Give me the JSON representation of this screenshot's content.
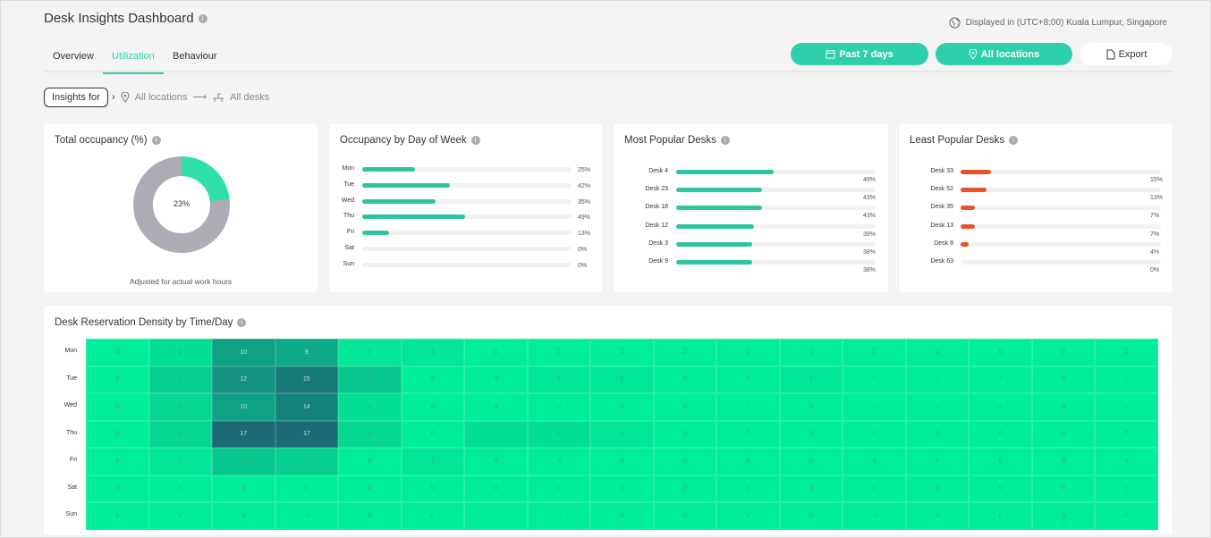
{
  "header": {
    "title": "Desk Insights Dashboard",
    "info": "i",
    "timezone": "Displayed in (UTC+8:00) Kuala Lumpur, Singapore"
  },
  "tabs": [
    {
      "label": "Overview"
    },
    {
      "label": "Utilization",
      "active": true
    },
    {
      "label": "Behaviour"
    }
  ],
  "buttons": {
    "date": "Past 7 days",
    "location": "All locations",
    "export": "Export"
  },
  "breadcrumb": {
    "insights_for": "Insights for",
    "location": "All locations",
    "desks": "All desks"
  },
  "colors": {
    "accent": "#2ecfab",
    "bar_green": "#2ec4a0",
    "bar_red": "#e8522a",
    "heat_low": "#00ee99",
    "heat_high": "#1a6b73"
  },
  "total_occupancy": {
    "title": "Total occupancy (%)",
    "value": 23,
    "label": "23%",
    "footnote": "Adjusted for actual work hours"
  },
  "day_of_week": {
    "title": "Occupancy by Day of Week",
    "rows": [
      {
        "label": "Mon",
        "value": 25,
        "text": "25%"
      },
      {
        "label": "Tue",
        "value": 42,
        "text": "42%"
      },
      {
        "label": "Wed",
        "value": 35,
        "text": "35%"
      },
      {
        "label": "Thu",
        "value": 49,
        "text": "49%"
      },
      {
        "label": "Fri",
        "value": 13,
        "text": "13%"
      },
      {
        "label": "Sat",
        "value": 0,
        "text": "0%"
      },
      {
        "label": "Sun",
        "value": 0,
        "text": "0%"
      }
    ]
  },
  "most_popular": {
    "title": "Most Popular Desks",
    "rows": [
      {
        "label": "Desk 4",
        "value": 49,
        "text": "49%"
      },
      {
        "label": "Desk 23",
        "value": 43,
        "text": "43%"
      },
      {
        "label": "Desk 18",
        "value": 43,
        "text": "43%"
      },
      {
        "label": "Desk 12",
        "value": 39,
        "text": "39%"
      },
      {
        "label": "Desk 3",
        "value": 38,
        "text": "38%"
      },
      {
        "label": "Desk 9",
        "value": 38,
        "text": "38%"
      }
    ]
  },
  "least_popular": {
    "title": "Least Popular Desks",
    "rows": [
      {
        "label": "Desk 33",
        "value": 15,
        "text": "15%"
      },
      {
        "label": "Desk 52",
        "value": 13,
        "text": "13%"
      },
      {
        "label": "Desk 35",
        "value": 7,
        "text": "7%"
      },
      {
        "label": "Desk 13",
        "value": 7,
        "text": "7%"
      },
      {
        "label": "Desk 8",
        "value": 4,
        "text": "4%"
      },
      {
        "label": "Desk 63",
        "value": 0,
        "text": "0%"
      }
    ]
  },
  "heatmap": {
    "title": "Desk Reservation Density by Time/Day",
    "days": [
      "Mon",
      "Tue",
      "Wed",
      "Thu",
      "Fri",
      "Sat",
      "Sun"
    ],
    "max": 17,
    "values": [
      [
        0,
        2,
        10,
        9,
        1,
        1,
        0,
        0,
        0,
        0,
        0,
        0,
        0,
        0,
        0,
        0,
        0
      ],
      [
        0,
        4,
        12,
        15,
        5,
        0,
        0,
        1,
        1,
        0,
        0,
        1,
        0,
        0,
        0,
        0,
        0
      ],
      [
        0,
        3,
        10,
        14,
        2,
        0,
        0,
        0,
        0,
        0,
        0,
        0,
        0,
        0,
        0,
        0,
        0
      ],
      [
        0,
        3,
        17,
        17,
        3,
        0,
        2,
        2,
        1,
        0,
        0,
        0,
        0,
        0,
        0,
        0,
        0
      ],
      [
        0,
        1,
        5,
        4,
        0,
        1,
        0,
        0,
        0,
        0,
        0,
        0,
        0,
        0,
        0,
        0,
        0
      ],
      [
        0,
        0,
        0,
        0,
        0,
        0,
        0,
        0,
        0,
        0,
        0,
        0,
        0,
        0,
        0,
        0,
        0
      ],
      [
        0,
        0,
        0,
        0,
        0,
        0,
        0,
        0,
        0,
        0,
        0,
        0,
        0,
        0,
        0,
        0,
        0
      ]
    ]
  }
}
